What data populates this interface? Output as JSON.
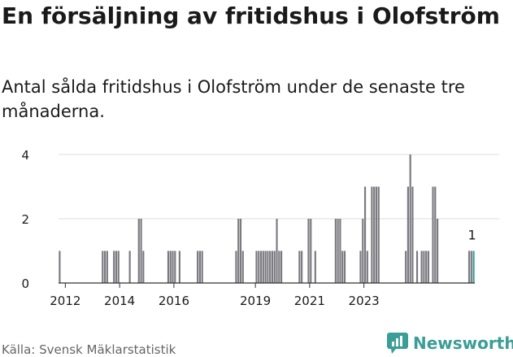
{
  "header": {
    "title": "En försäljning av fritidshus i Olofström",
    "subtitle": "Antal sålda fritidshus i Olofström under de senaste tre månaderna."
  },
  "footer": {
    "source": "Källa: Svensk Mäklarstatistik",
    "brand_name": "Newsworthy"
  },
  "colors": {
    "bar": "#7a7a80",
    "highlight": "#3a9e96",
    "text": "#1a1a1a",
    "axis": "#333333",
    "grid": "#dddddd",
    "brand": "#3a9e96"
  },
  "chart_data": {
    "type": "bar",
    "title": "",
    "xlabel": "",
    "ylabel": "",
    "x_unit": "month",
    "x_start": "2011-10",
    "ylim": [
      0,
      4
    ],
    "y_ticks": [
      0,
      2,
      4
    ],
    "x_ticks": [
      "2012",
      "2014",
      "2016",
      "2019",
      "2021",
      "2023"
    ],
    "x_tick_dates": [
      "2012-01",
      "2014-01",
      "2016-01",
      "2019-01",
      "2021-01",
      "2023-01"
    ],
    "grid": true,
    "values": [
      1,
      0,
      0,
      0,
      0,
      0,
      0,
      0,
      0,
      0,
      0,
      0,
      0,
      0,
      0,
      0,
      0,
      0,
      0,
      1,
      1,
      1,
      0,
      0,
      1,
      1,
      1,
      0,
      0,
      0,
      0,
      1,
      0,
      0,
      0,
      2,
      2,
      1,
      0,
      0,
      0,
      0,
      0,
      0,
      0,
      0,
      0,
      0,
      1,
      1,
      1,
      1,
      0,
      1,
      0,
      0,
      0,
      0,
      0,
      0,
      0,
      1,
      1,
      1,
      0,
      0,
      0,
      0,
      0,
      0,
      0,
      0,
      0,
      0,
      0,
      0,
      0,
      0,
      1,
      2,
      2,
      1,
      0,
      0,
      0,
      0,
      0,
      1,
      1,
      1,
      1,
      1,
      1,
      1,
      1,
      1,
      2,
      1,
      1,
      0,
      0,
      0,
      0,
      0,
      0,
      0,
      1,
      1,
      0,
      0,
      2,
      2,
      0,
      1,
      0,
      0,
      0,
      0,
      0,
      0,
      0,
      0,
      2,
      2,
      2,
      1,
      1,
      0,
      0,
      0,
      0,
      0,
      0,
      1,
      2,
      3,
      1,
      0,
      3,
      3,
      3,
      3,
      0,
      0,
      0,
      0,
      0,
      0,
      0,
      0,
      0,
      0,
      0,
      1,
      3,
      4,
      3,
      0,
      1,
      0,
      1,
      1,
      1,
      1,
      0,
      3,
      3,
      2,
      0,
      0,
      0,
      0,
      0,
      0,
      0,
      0,
      0,
      0,
      0,
      0,
      0,
      1,
      1,
      1
    ],
    "highlight_index": 183,
    "annotation": "1"
  }
}
